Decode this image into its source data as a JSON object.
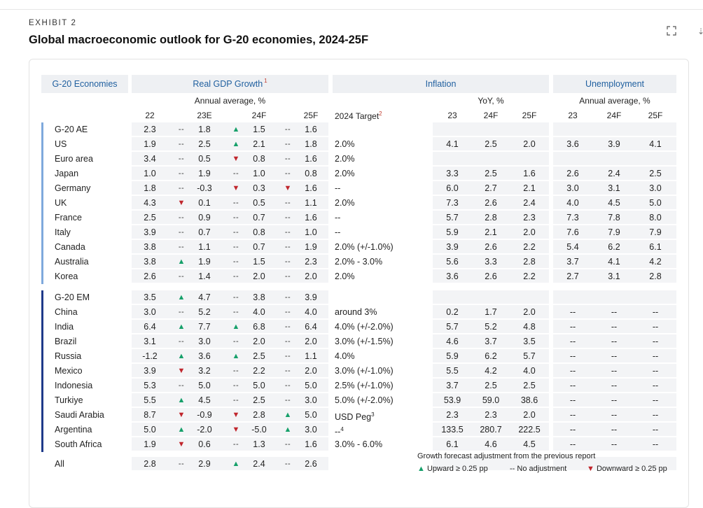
{
  "exhibit": "EXHIBIT 2",
  "title": "Global macroeconomic outlook for G-20 economies, 2024-25F",
  "headers": {
    "economies": "G-20 Economies",
    "gdp": "Real GDP Growth",
    "gdp_note": "1",
    "inflation": "Inflation",
    "unemployment": "Unemployment"
  },
  "subheaders": {
    "gdp_unit": "Annual average, %",
    "infl_unit": "YoY, %",
    "unemp_unit": "Annual average, %",
    "gdp_cols": [
      "22",
      "23E",
      "24F",
      "25F"
    ],
    "target": "2024 Target",
    "target_note": "2",
    "infl_cols": [
      "23",
      "24F",
      "25F"
    ],
    "unemp_cols": [
      "23",
      "24F",
      "25F"
    ]
  },
  "rows": [
    {
      "name": "G-20 AE",
      "group": "ae",
      "summary": true,
      "gdp": [
        "2.3",
        "1.8",
        "1.5",
        "1.6"
      ],
      "ind": [
        "flat",
        "up",
        "flat"
      ],
      "target": "",
      "target_note": "",
      "infl": [
        "",
        "",
        ""
      ],
      "unemp": [
        "",
        "",
        ""
      ]
    },
    {
      "name": "US",
      "group": "ae",
      "gdp": [
        "1.9",
        "2.5",
        "2.1",
        "1.8"
      ],
      "ind": [
        "flat",
        "up",
        "flat"
      ],
      "target": "2.0%",
      "target_note": "",
      "infl": [
        "4.1",
        "2.5",
        "2.0"
      ],
      "unemp": [
        "3.6",
        "3.9",
        "4.1"
      ]
    },
    {
      "name": "Euro area",
      "group": "ae",
      "gdp": [
        "3.4",
        "0.5",
        "0.8",
        "1.6"
      ],
      "ind": [
        "flat",
        "down",
        "flat"
      ],
      "target": "2.0%",
      "target_note": "",
      "infl": [
        "",
        "",
        ""
      ],
      "unemp": [
        "",
        "",
        ""
      ]
    },
    {
      "name": "Japan",
      "group": "ae",
      "gdp": [
        "1.0",
        "1.9",
        "1.0",
        "0.8"
      ],
      "ind": [
        "flat",
        "flat",
        "flat"
      ],
      "target": "2.0%",
      "target_note": "",
      "infl": [
        "3.3",
        "2.5",
        "1.6"
      ],
      "unemp": [
        "2.6",
        "2.4",
        "2.5"
      ]
    },
    {
      "name": "Germany",
      "group": "ae",
      "gdp": [
        "1.8",
        "-0.3",
        "0.3",
        "1.6"
      ],
      "ind": [
        "flat",
        "down",
        "down"
      ],
      "target": "--",
      "target_note": "",
      "infl": [
        "6.0",
        "2.7",
        "2.1"
      ],
      "unemp": [
        "3.0",
        "3.1",
        "3.0"
      ]
    },
    {
      "name": "UK",
      "group": "ae",
      "gdp": [
        "4.3",
        "0.1",
        "0.5",
        "1.1"
      ],
      "ind": [
        "down",
        "flat",
        "flat"
      ],
      "target": "2.0%",
      "target_note": "",
      "infl": [
        "7.3",
        "2.6",
        "2.4"
      ],
      "unemp": [
        "4.0",
        "4.5",
        "5.0"
      ]
    },
    {
      "name": "France",
      "group": "ae",
      "gdp": [
        "2.5",
        "0.9",
        "0.7",
        "1.6"
      ],
      "ind": [
        "flat",
        "flat",
        "flat"
      ],
      "target": "--",
      "target_note": "",
      "infl": [
        "5.7",
        "2.8",
        "2.3"
      ],
      "unemp": [
        "7.3",
        "7.8",
        "8.0"
      ]
    },
    {
      "name": "Italy",
      "group": "ae",
      "gdp": [
        "3.9",
        "0.7",
        "0.8",
        "1.0"
      ],
      "ind": [
        "flat",
        "flat",
        "flat"
      ],
      "target": "--",
      "target_note": "",
      "infl": [
        "5.9",
        "2.1",
        "2.0"
      ],
      "unemp": [
        "7.6",
        "7.9",
        "7.9"
      ]
    },
    {
      "name": "Canada",
      "group": "ae",
      "gdp": [
        "3.8",
        "1.1",
        "0.7",
        "1.9"
      ],
      "ind": [
        "flat",
        "flat",
        "flat"
      ],
      "target": "2.0% (+/-1.0%)",
      "target_note": "",
      "infl": [
        "3.9",
        "2.6",
        "2.2"
      ],
      "unemp": [
        "5.4",
        "6.2",
        "6.1"
      ]
    },
    {
      "name": "Australia",
      "group": "ae",
      "gdp": [
        "3.8",
        "1.9",
        "1.5",
        "2.3"
      ],
      "ind": [
        "up",
        "flat",
        "flat"
      ],
      "target": "2.0% - 3.0%",
      "target_note": "",
      "infl": [
        "5.6",
        "3.3",
        "2.8"
      ],
      "unemp": [
        "3.7",
        "4.1",
        "4.2"
      ]
    },
    {
      "name": "Korea",
      "group": "ae",
      "gdp": [
        "2.6",
        "1.4",
        "2.0",
        "2.0"
      ],
      "ind": [
        "flat",
        "flat",
        "flat"
      ],
      "target": "2.0%",
      "target_note": "",
      "infl": [
        "3.6",
        "2.6",
        "2.2"
      ],
      "unemp": [
        "2.7",
        "3.1",
        "2.8"
      ]
    },
    {
      "name": "G-20 EM",
      "group": "em",
      "summary": true,
      "gdp": [
        "3.5",
        "4.7",
        "3.8",
        "3.9"
      ],
      "ind": [
        "up",
        "flat",
        "flat"
      ],
      "target": "",
      "target_note": "",
      "infl": [
        "",
        "",
        ""
      ],
      "unemp": [
        "",
        "",
        ""
      ]
    },
    {
      "name": "China",
      "group": "em",
      "gdp": [
        "3.0",
        "5.2",
        "4.0",
        "4.0"
      ],
      "ind": [
        "flat",
        "flat",
        "flat"
      ],
      "target": "around 3%",
      "target_note": "",
      "infl": [
        "0.2",
        "1.7",
        "2.0"
      ],
      "unemp": [
        "--",
        "--",
        "--"
      ]
    },
    {
      "name": "India",
      "group": "em",
      "gdp": [
        "6.4",
        "7.7",
        "6.8",
        "6.4"
      ],
      "ind": [
        "up",
        "up",
        "flat"
      ],
      "target": "4.0% (+/-2.0%)",
      "target_note": "",
      "infl": [
        "5.7",
        "5.2",
        "4.8"
      ],
      "unemp": [
        "--",
        "--",
        "--"
      ]
    },
    {
      "name": "Brazil",
      "group": "em",
      "gdp": [
        "3.1",
        "3.0",
        "2.0",
        "2.0"
      ],
      "ind": [
        "flat",
        "flat",
        "flat"
      ],
      "target": "3.0% (+/-1.5%)",
      "target_note": "",
      "infl": [
        "4.6",
        "3.7",
        "3.5"
      ],
      "unemp": [
        "--",
        "--",
        "--"
      ]
    },
    {
      "name": "Russia",
      "group": "em",
      "gdp": [
        "-1.2",
        "3.6",
        "2.5",
        "1.1"
      ],
      "ind": [
        "up",
        "up",
        "flat"
      ],
      "target": "4.0%",
      "target_note": "",
      "infl": [
        "5.9",
        "6.2",
        "5.7"
      ],
      "unemp": [
        "--",
        "--",
        "--"
      ]
    },
    {
      "name": "Mexico",
      "group": "em",
      "gdp": [
        "3.9",
        "3.2",
        "2.2",
        "2.0"
      ],
      "ind": [
        "down",
        "flat",
        "flat"
      ],
      "target": "3.0% (+/-1.0%)",
      "target_note": "",
      "infl": [
        "5.5",
        "4.2",
        "4.0"
      ],
      "unemp": [
        "--",
        "--",
        "--"
      ]
    },
    {
      "name": "Indonesia",
      "group": "em",
      "gdp": [
        "5.3",
        "5.0",
        "5.0",
        "5.0"
      ],
      "ind": [
        "flat",
        "flat",
        "flat"
      ],
      "target": "2.5% (+/-1.0%)",
      "target_note": "",
      "infl": [
        "3.7",
        "2.5",
        "2.5"
      ],
      "unemp": [
        "--",
        "--",
        "--"
      ]
    },
    {
      "name": "Turkiye",
      "group": "em",
      "gdp": [
        "5.5",
        "4.5",
        "2.5",
        "3.0"
      ],
      "ind": [
        "up",
        "flat",
        "flat"
      ],
      "target": "5.0% (+/-2.0%)",
      "target_note": "",
      "infl": [
        "53.9",
        "59.0",
        "38.6"
      ],
      "unemp": [
        "--",
        "--",
        "--"
      ]
    },
    {
      "name": "Saudi Arabia",
      "group": "em",
      "gdp": [
        "8.7",
        "-0.9",
        "2.8",
        "5.0"
      ],
      "ind": [
        "down",
        "down",
        "up"
      ],
      "target": "USD Peg",
      "target_note": "3",
      "infl": [
        "2.3",
        "2.3",
        "2.0"
      ],
      "unemp": [
        "--",
        "--",
        "--"
      ]
    },
    {
      "name": "Argentina",
      "group": "em",
      "gdp": [
        "5.0",
        "-2.0",
        "-5.0",
        "3.0"
      ],
      "ind": [
        "up",
        "down",
        "up"
      ],
      "target": "--",
      "target_note": "4",
      "infl": [
        "133.5",
        "280.7",
        "222.5"
      ],
      "unemp": [
        "--",
        "--",
        "--"
      ]
    },
    {
      "name": "South Africa",
      "group": "em",
      "gdp": [
        "1.9",
        "0.6",
        "1.3",
        "1.6"
      ],
      "ind": [
        "down",
        "flat",
        "flat"
      ],
      "target": "3.0% - 6.0%",
      "target_note": "",
      "infl": [
        "6.1",
        "4.6",
        "4.5"
      ],
      "unemp": [
        "--",
        "--",
        "--"
      ]
    },
    {
      "name": "All",
      "group": "all",
      "summary": true,
      "gdp": [
        "2.8",
        "2.9",
        "2.4",
        "2.6"
      ],
      "ind": [
        "flat",
        "up",
        "flat"
      ],
      "target": "",
      "target_note": "",
      "infl": [
        "",
        "",
        ""
      ],
      "unemp": [
        "",
        "",
        ""
      ]
    }
  ],
  "legend": {
    "title": "Growth forecast adjustment from the previous report",
    "up": "Upward ≥ 0.25 pp",
    "flat": "No adjustment",
    "down": "Downward ≥ 0.25 pp"
  },
  "symbols": {
    "up": "▲",
    "down": "▼",
    "flat": "--"
  },
  "colors": {
    "header_text": "#1f5f9f",
    "up": "#16a06a",
    "down": "#c0262d",
    "ae_bar": "#7fa9dc",
    "em_bar": "#1e3a8a",
    "stripe": "#f3f4f6"
  }
}
